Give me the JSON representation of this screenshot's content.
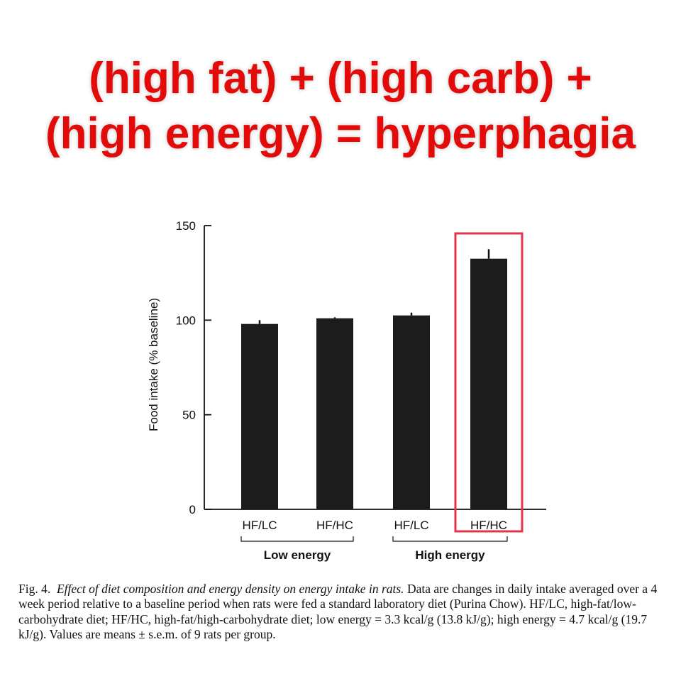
{
  "headline": {
    "line1": "(high fat) + (high carb) +",
    "line2": "(high energy) = hyperphagia"
  },
  "caption": {
    "label": "Fig. 4.",
    "title": "Effect of diet composition and energy density on energy intake in rats.",
    "text": "Data are changes in daily intake averaged over a 4 week period relative to a baseline period when rats were fed a standard laboratory diet (Purina Chow). HF/LC, high-fat/low-carbohydrate diet; HF/HC, high-fat/high-carbohydrate diet; low energy = 3.3 kcal/g (13.8 kJ/g); high energy = 4.7 kcal/g (19.7 kJ/g). Values are means ± s.e.m. of 9 rats per group."
  },
  "colors": {
    "headline": "#e30a0a",
    "bars": "#1c1c1c",
    "highlight_box": "#e0344a"
  },
  "chart_data": {
    "type": "bar",
    "ylabel": "Food intake (% baseline)",
    "ylim": [
      0,
      150
    ],
    "yticks": [
      "0",
      "50",
      "100",
      "150"
    ],
    "categories": [
      "HF/LC",
      "HF/HC",
      "HF/LC",
      "HF/HC"
    ],
    "values": [
      98,
      101,
      102.5,
      132.5
    ],
    "errors": [
      2,
      0.5,
      1.5,
      5
    ],
    "groups": [
      {
        "label": "Low energy",
        "categories": [
          0,
          1
        ]
      },
      {
        "label": "High energy",
        "categories": [
          2,
          3
        ]
      }
    ],
    "highlighted_index": 3,
    "grid": false
  }
}
